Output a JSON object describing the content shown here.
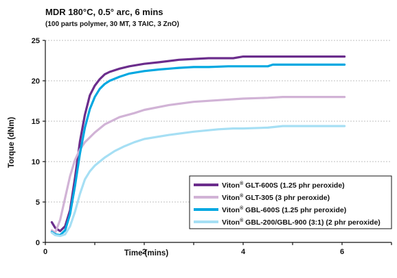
{
  "chart_data": {
    "type": "line",
    "title": "MDR 180°C, 0.5° arc, 6 mins",
    "subtitle": "(100 parts polymer, 30 MT, 3 TAIC, 3 ZnO)",
    "xlabel": "Time (mins)",
    "ylabel": "Torque (dNm)",
    "xlim": [
      0,
      7
    ],
    "ylim": [
      0,
      25
    ],
    "x_ticks": [
      0,
      2,
      4,
      6
    ],
    "y_ticks": [
      0,
      5,
      10,
      15,
      20,
      25
    ],
    "x_tick_labels": [
      "0",
      "2",
      "4",
      "6"
    ],
    "y_tick_labels": [
      "0",
      "5",
      "10",
      "15",
      "20",
      "25"
    ],
    "grid": "horizontal",
    "legend_position": "bottom-right",
    "series": [
      {
        "name": "GLT-600S (1.25 phr peroxide)",
        "color": "#6b2d8c",
        "x": [
          0.13,
          0.2,
          0.3,
          0.4,
          0.5,
          0.6,
          0.7,
          0.8,
          0.9,
          1.0,
          1.1,
          1.2,
          1.3,
          1.5,
          1.7,
          2.0,
          2.3,
          2.7,
          3.0,
          3.3,
          3.7,
          3.8,
          4.0,
          4.5,
          5.0,
          5.5,
          6.05
        ],
        "y": [
          2.5,
          1.8,
          1.4,
          2.0,
          4.0,
          8.0,
          12.5,
          15.8,
          18.2,
          19.4,
          20.2,
          20.8,
          21.1,
          21.5,
          21.8,
          22.1,
          22.3,
          22.6,
          22.7,
          22.8,
          22.8,
          22.8,
          23.0,
          23.0,
          23.0,
          23.0,
          23.0
        ]
      },
      {
        "name": "GLT-305 (3 phr peroxide)",
        "color": "#d1b3d6",
        "x": [
          0.13,
          0.2,
          0.3,
          0.4,
          0.5,
          0.6,
          0.7,
          0.8,
          0.9,
          1.0,
          1.2,
          1.5,
          1.8,
          2.0,
          2.5,
          3.0,
          3.5,
          4.0,
          4.5,
          4.8,
          5.0,
          6.05
        ],
        "y": [
          1.5,
          1.2,
          2.8,
          5.5,
          8.2,
          10.2,
          11.5,
          12.4,
          13.0,
          13.6,
          14.6,
          15.5,
          16.0,
          16.4,
          17.0,
          17.4,
          17.6,
          17.8,
          17.9,
          18.0,
          18.0,
          18.0
        ]
      },
      {
        "name": "GBL-600S (1.25 phr peroxide)",
        "color": "#00a8e1",
        "x": [
          0.13,
          0.2,
          0.3,
          0.4,
          0.5,
          0.6,
          0.7,
          0.8,
          0.9,
          1.0,
          1.1,
          1.2,
          1.3,
          1.5,
          1.7,
          2.0,
          2.3,
          2.7,
          3.0,
          3.3,
          3.7,
          4.0,
          4.5,
          4.6,
          5.0,
          5.5,
          6.05
        ],
        "y": [
          1.3,
          1.0,
          0.9,
          1.5,
          3.5,
          7.0,
          11.0,
          14.2,
          16.5,
          18.0,
          19.0,
          19.6,
          20.0,
          20.5,
          20.9,
          21.2,
          21.4,
          21.6,
          21.7,
          21.7,
          21.8,
          21.8,
          21.8,
          22.0,
          22.0,
          22.0,
          22.0
        ]
      },
      {
        "name": "GBL-200/GBL-900 (3:1) (2 phr peroxide)",
        "color": "#a6dff4",
        "x": [
          0.13,
          0.2,
          0.3,
          0.4,
          0.5,
          0.6,
          0.7,
          0.8,
          0.9,
          1.0,
          1.2,
          1.4,
          1.6,
          1.8,
          2.0,
          2.5,
          3.0,
          3.5,
          3.8,
          4.0,
          4.5,
          4.8,
          5.0,
          6.05
        ],
        "y": [
          1.2,
          0.9,
          0.8,
          1.0,
          2.0,
          3.8,
          6.0,
          7.8,
          8.8,
          9.5,
          10.5,
          11.3,
          11.9,
          12.4,
          12.8,
          13.3,
          13.7,
          14.0,
          14.1,
          14.1,
          14.2,
          14.4,
          14.4,
          14.4
        ]
      }
    ],
    "legend_prefix": "Viton",
    "legend_mark": "®"
  }
}
